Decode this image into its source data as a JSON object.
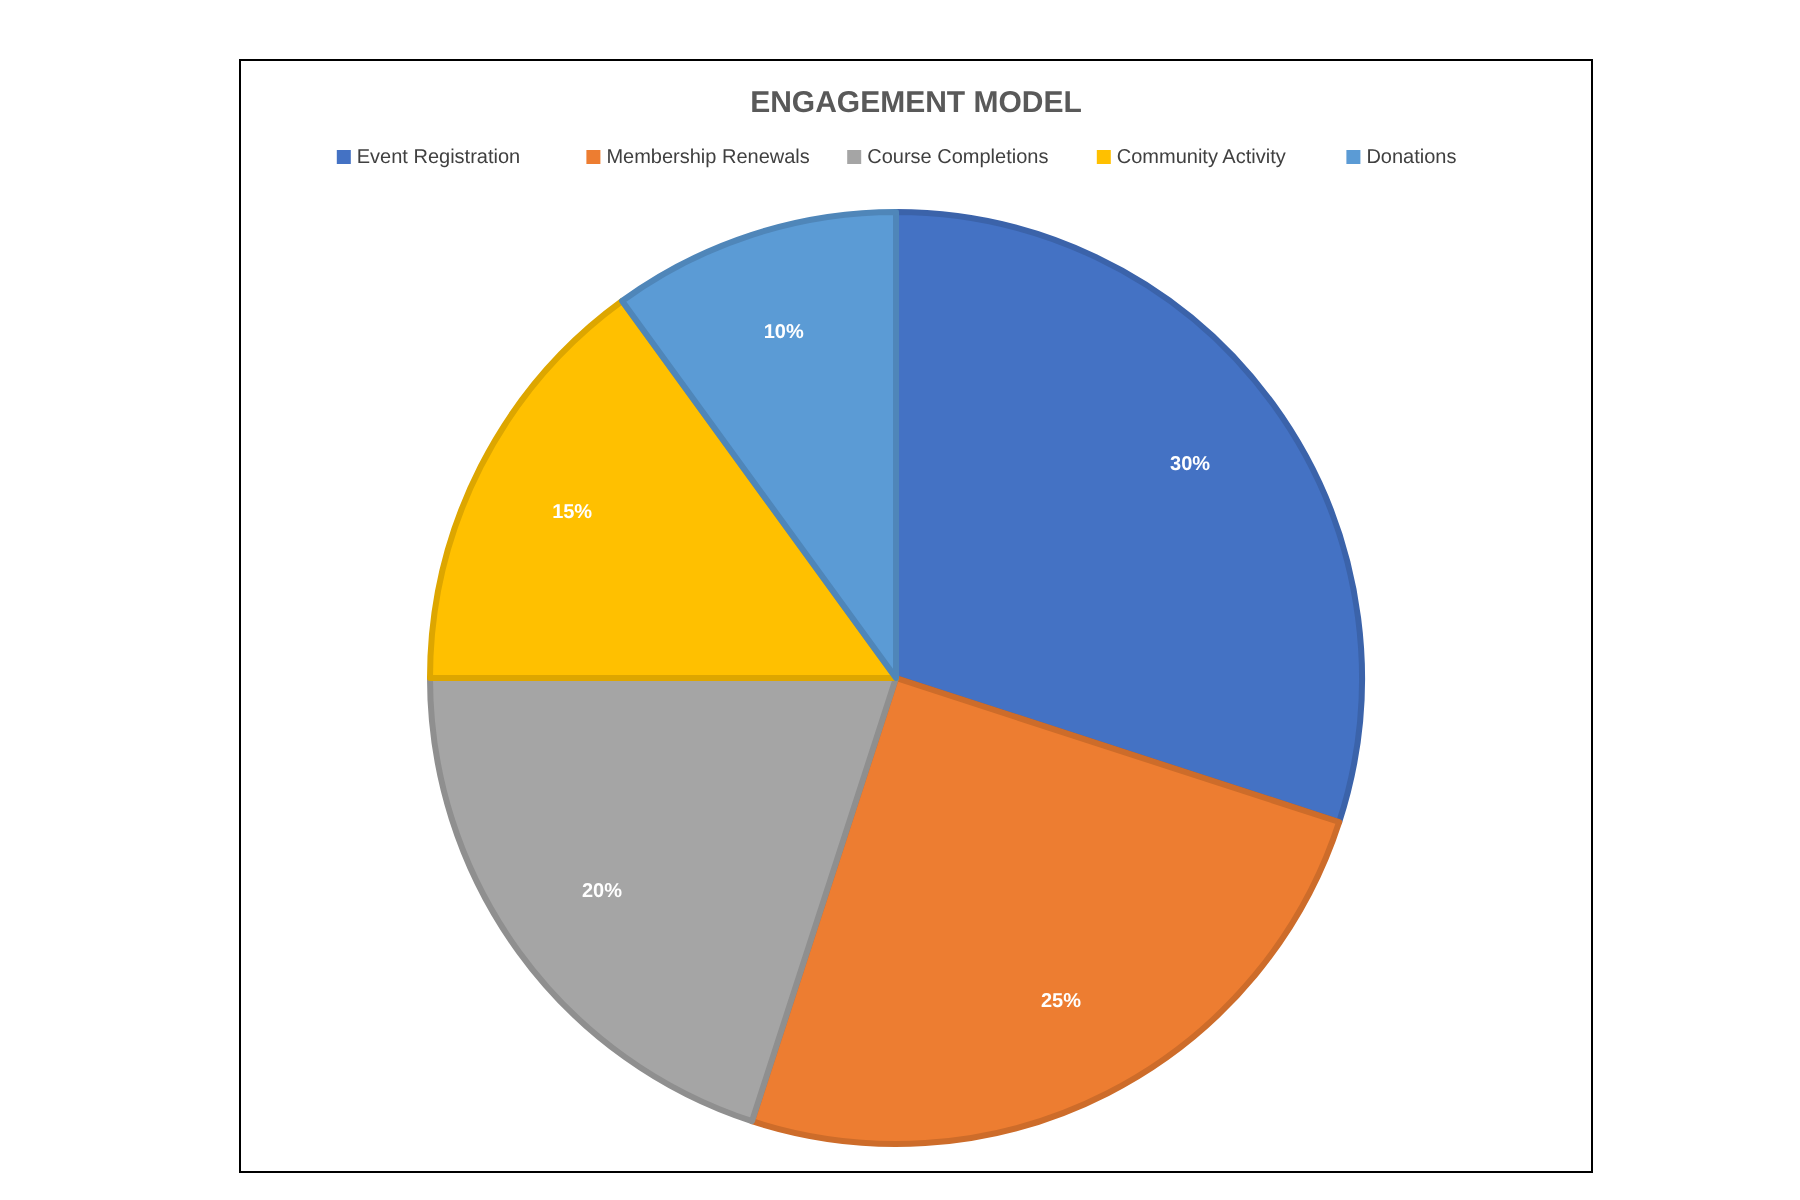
{
  "chart_data": {
    "type": "pie",
    "title": "ENGAGEMENT MODEL",
    "categories": [
      "Event Registration",
      "Membership Renewals",
      "Course Completions",
      "Community Activity",
      "Donations"
    ],
    "values": [
      30,
      25,
      20,
      15,
      10
    ],
    "colors": [
      "#4472c4",
      "#ed7d31",
      "#a5a5a5",
      "#ffc000",
      "#5b9bd5"
    ],
    "value_labels": [
      "30%",
      "25%",
      "20%",
      "15%",
      "10%"
    ],
    "legend": "top"
  }
}
